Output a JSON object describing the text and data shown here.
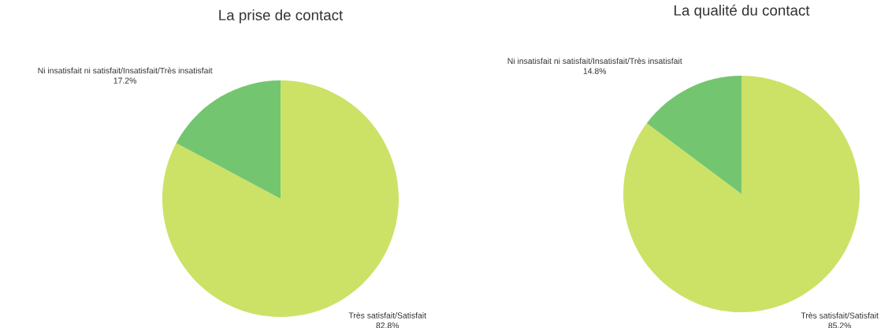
{
  "chart_data": [
    {
      "type": "pie",
      "title": "La prise de contact",
      "categories": [
        "Très satisfait/Satisfait",
        "Ni insatisfait ni satisfait/Insatisfait/Très insatisfait"
      ],
      "values": [
        82.8,
        17.2
      ],
      "colors": [
        "#cbe267",
        "#74c570"
      ],
      "value_labels": [
        "82.8%",
        "17.2%"
      ]
    },
    {
      "type": "pie",
      "title": "La qualité du contact",
      "categories": [
        "Très satisfait/Satisfait",
        "Ni insatisfait ni satisfait/Insatisfait/Très insatisfait"
      ],
      "values": [
        85.2,
        14.8
      ],
      "colors": [
        "#cbe267",
        "#74c570"
      ],
      "value_labels": [
        "85.2%",
        "14.8%"
      ]
    }
  ]
}
